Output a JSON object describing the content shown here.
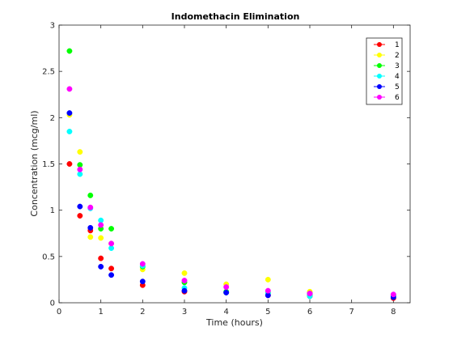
{
  "chart_data": {
    "type": "scatter",
    "title": "Indomethacin Elimination",
    "xlabel": "Time (hours)",
    "ylabel": "Concentration (mcg/ml)",
    "xlim": [
      0,
      8.4
    ],
    "ylim": [
      0,
      3
    ],
    "xticks": [
      0,
      1,
      2,
      3,
      4,
      5,
      6,
      7,
      8
    ],
    "yticks": [
      0,
      0.5,
      1,
      1.5,
      2,
      2.5,
      3
    ],
    "xtick_labels": [
      "0",
      "1",
      "2",
      "3",
      "4",
      "5",
      "6",
      "7",
      "8"
    ],
    "ytick_labels": [
      "0",
      "0.5",
      "1",
      "1.5",
      "2",
      "2.5",
      "3"
    ],
    "grid": false,
    "legend_position": "top-right",
    "x": [
      0.25,
      0.5,
      0.75,
      1,
      1.25,
      2,
      3,
      4,
      5,
      6,
      8
    ],
    "series": [
      {
        "name": "1",
        "color": "#ff0000",
        "values": [
          1.5,
          0.94,
          0.78,
          0.48,
          0.37,
          0.19,
          0.12,
          0.11,
          0.08,
          0.07,
          0.05
        ]
      },
      {
        "name": "2",
        "color": "#ffff00",
        "values": [
          2.03,
          1.63,
          0.71,
          0.7,
          0.64,
          0.36,
          0.32,
          0.2,
          0.25,
          0.12,
          0.08
        ]
      },
      {
        "name": "3",
        "color": "#00ff00",
        "values": [
          2.72,
          1.49,
          1.16,
          0.8,
          0.8,
          0.39,
          0.22,
          0.12,
          0.11,
          0.08,
          0.08
        ]
      },
      {
        "name": "4",
        "color": "#00ffff",
        "values": [
          1.85,
          1.39,
          1.02,
          0.89,
          0.59,
          0.4,
          0.16,
          0.11,
          0.1,
          0.07,
          0.07
        ]
      },
      {
        "name": "5",
        "color": "#0000ff",
        "values": [
          2.05,
          1.04,
          0.81,
          0.39,
          0.3,
          0.23,
          0.13,
          0.11,
          0.08,
          0.1,
          0.06
        ]
      },
      {
        "name": "6",
        "color": "#ff00ff",
        "values": [
          2.31,
          1.44,
          1.03,
          0.84,
          0.64,
          0.42,
          0.24,
          0.17,
          0.13,
          0.1,
          0.09
        ]
      }
    ]
  }
}
